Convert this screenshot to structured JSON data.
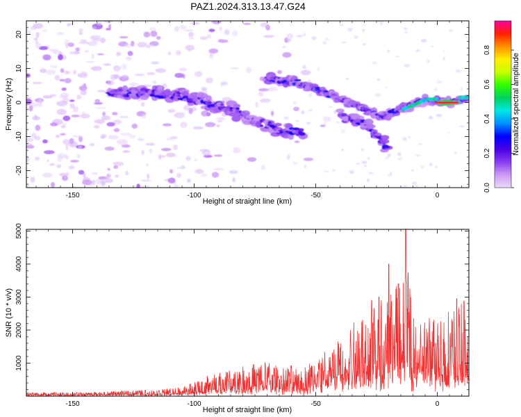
{
  "title": "PAZ1.2024.313.13.47.G24",
  "chart_data": [
    {
      "type": "heatmap",
      "xlabel": "Height of straight line (km)",
      "ylabel": "Frequency (Hz)",
      "xlim": [
        -169,
        13
      ],
      "ylim": [
        -25,
        24
      ],
      "xticks": [
        -150,
        -100,
        -50,
        0
      ],
      "yticks": [
        -20,
        -10,
        0,
        10,
        20
      ],
      "colorbar": {
        "label": "Normalized spectral amplitude",
        "range": [
          0.0,
          0.97
        ],
        "ticks": [
          0.0,
          0.2,
          0.4,
          0.6,
          0.8
        ],
        "colormap": [
          "#ebdcfa",
          "#cc99f5",
          "#8a3cf0",
          "#4b00e6",
          "#0000ff",
          "#0090ff",
          "#00e5e5",
          "#00d060",
          "#30ff00",
          "#c8ff00",
          "#ffee00",
          "#ff9000",
          "#ff2000",
          "#ff00a0"
        ]
      },
      "features": [
        {
          "name": "main track",
          "points": [
            [
              -135,
              3
            ],
            [
              -120,
              3
            ],
            [
              -105,
              2
            ],
            [
              -95,
              0
            ],
            [
              -85,
              -2
            ],
            [
              -75,
              -5
            ],
            [
              -65,
              -8
            ],
            [
              -55,
              -9
            ]
          ]
        },
        {
          "name": "upper track",
          "points": [
            [
              -70,
              7
            ],
            [
              -58,
              6
            ],
            [
              -50,
              4
            ],
            [
              -40,
              1
            ],
            [
              -30,
              -2
            ],
            [
              -22,
              -4
            ],
            [
              -15,
              -2
            ],
            [
              -5,
              1
            ],
            [
              5,
              0
            ],
            [
              13,
              1.5
            ]
          ]
        },
        {
          "name": "lower branch",
          "points": [
            [
              -40,
              -4
            ],
            [
              -30,
              -6
            ],
            [
              -25,
              -10
            ],
            [
              -20,
              -14
            ]
          ]
        }
      ],
      "peak": {
        "x": [
          0,
          8
        ],
        "y": 0,
        "value": 0.95
      }
    },
    {
      "type": "line",
      "xlabel": "Height of straight line (km)",
      "ylabel": "SNR (10 * v/v)",
      "xlim": [
        -169,
        13
      ],
      "ylim": [
        0,
        5050
      ],
      "xticks": [
        -150,
        -100,
        -50,
        0
      ],
      "yticks": [
        1000,
        2000,
        3000,
        4000,
        5000
      ],
      "color": "#f03030",
      "envelope": [
        [
          -169,
          120
        ],
        [
          -150,
          110
        ],
        [
          -135,
          140
        ],
        [
          -125,
          180
        ],
        [
          -115,
          200
        ],
        [
          -105,
          300
        ],
        [
          -100,
          420
        ],
        [
          -95,
          600
        ],
        [
          -90,
          700
        ],
        [
          -85,
          800
        ],
        [
          -80,
          900
        ],
        [
          -75,
          1000
        ],
        [
          -70,
          1050
        ],
        [
          -65,
          900
        ],
        [
          -60,
          950
        ],
        [
          -55,
          900
        ],
        [
          -50,
          1200
        ],
        [
          -45,
          1500
        ],
        [
          -40,
          1900
        ],
        [
          -35,
          2200
        ],
        [
          -30,
          2600
        ],
        [
          -25,
          2800
        ],
        [
          -20,
          3300
        ],
        [
          -15,
          3500
        ],
        [
          -12,
          3800
        ],
        [
          -10,
          2500
        ],
        [
          -5,
          2400
        ],
        [
          0,
          2500
        ],
        [
          5,
          2700
        ],
        [
          10,
          2800
        ],
        [
          13,
          1900
        ]
      ],
      "peaks": [
        [
          -20,
          4000
        ],
        [
          -13,
          5050
        ],
        [
          -16,
          3400
        ],
        [
          -24,
          3000
        ],
        [
          -27,
          2900
        ],
        [
          8,
          2950
        ],
        [
          11,
          2880
        ]
      ]
    }
  ]
}
